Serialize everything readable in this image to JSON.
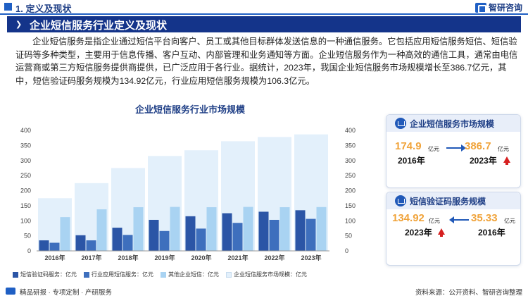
{
  "header": {
    "section_title": "1. 定义及现状",
    "brand_name": "智研咨询"
  },
  "banner": {
    "title": "企业短信服务行业定义及现状"
  },
  "intro": {
    "text": "企业短信服务是指企业通过短信平台向客户、员工或其他目标群体发送信息的一种通信服务。它包括应用短信服务短信、短信验证码等多种类型，主要用于信息传播、客户互动、内部管理和业务通知等方面。企业短信服务作为一种高效的通信工具，通常由电信运营商或第三方短信服务提供商提供，已广泛应用于各行业。据统计，2023年，我国企业短信服务市场规模增长至386.7亿元，其中，短信验证码服务规模为134.92亿元，行业应用短信服务规模为106.3亿元。"
  },
  "chart_data": {
    "type": "bar",
    "title": "企业短信服务行业市场规模",
    "categories": [
      "2016年",
      "2017年",
      "2018年",
      "2019年",
      "2020年",
      "2021年",
      "2022年",
      "2023年"
    ],
    "series": [
      {
        "name": "短信验证码服务：亿元",
        "axis": "left",
        "color": "#2b55a6",
        "values": [
          35,
          52,
          77,
          103,
          115,
          125,
          130,
          134.92
        ]
      },
      {
        "name": "行业应用短信服务：亿元",
        "axis": "left",
        "color": "#3e6fbd",
        "values": [
          27,
          35,
          53,
          66,
          74,
          93,
          103,
          106.3
        ]
      },
      {
        "name": "其他企业短信：亿元",
        "axis": "left",
        "color": "#a9d3f2",
        "values": [
          112,
          138,
          145,
          146,
          145,
          146,
          145,
          145.5
        ]
      },
      {
        "name": "企业短信服务市场规模：亿元",
        "axis": "right",
        "color": "#e3f0fb",
        "values": [
          174.9,
          225,
          275,
          315,
          334,
          364,
          378,
          386.7
        ]
      }
    ],
    "y_left": {
      "ticks": [
        "0",
        "50",
        "100",
        "150",
        "200",
        "250",
        "300",
        "350",
        "400"
      ],
      "ylim": [
        0,
        400
      ]
    },
    "y_right": {
      "ticks": [
        "0",
        "50",
        "100",
        "150",
        "200",
        "250",
        "300",
        "350",
        "400"
      ],
      "ylim": [
        0,
        400
      ]
    },
    "grid": false,
    "legend_position": "bottom"
  },
  "card_market": {
    "title": "企业短信服务市场规模",
    "value_start": "174.9",
    "unit_start": "亿元",
    "year_start": "2016年",
    "value_end": "386.7",
    "unit_end": "亿元",
    "year_end": "2023年"
  },
  "card_verify": {
    "title": "短信验证码服务规模",
    "value_2023": "134.92",
    "unit_2023": "亿元",
    "year_2023": "2023年",
    "value_2016": "35.33",
    "unit_2016": "亿元",
    "year_2016": "2016年"
  },
  "footer": {
    "left_text": "精品研报 · 专项定制 · 产研服务",
    "right_text": "资料来源：公开资料、智研咨询整理"
  },
  "colors": {
    "primary": "#14348a",
    "accent_value": "#f0a33a",
    "arrow_up": "#d62020"
  }
}
